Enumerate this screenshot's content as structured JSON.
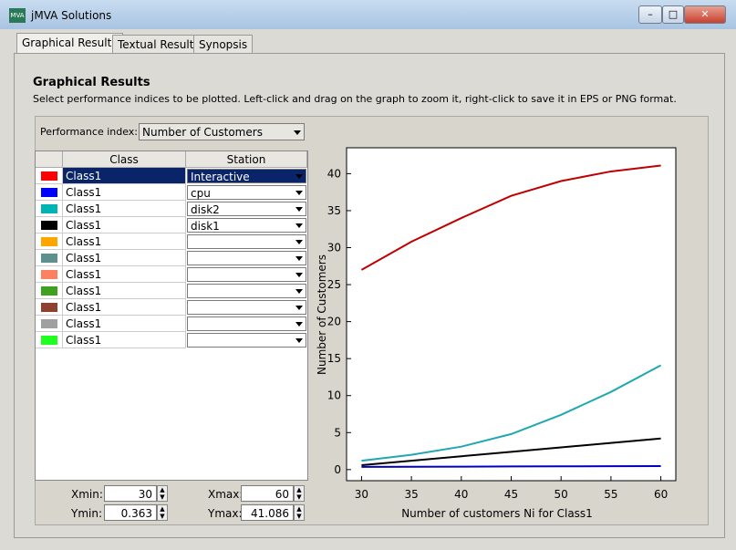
{
  "window": {
    "title": "jMVA Solutions"
  },
  "tabs": [
    "Graphical Results",
    "Textual Results",
    "Synopsis"
  ],
  "panel": {
    "title": "Graphical Results",
    "description": "Select performance indices to be plotted. Left-click and drag on the graph to zoom it, right-click to save it in EPS or PNG format."
  },
  "performance_index": {
    "label": "Performance index:",
    "value": "Number of Customers"
  },
  "table": {
    "headers": [
      "Class",
      "Station"
    ],
    "rows": [
      {
        "color": "#ff0000",
        "class": "Class1",
        "station": "Interactive"
      },
      {
        "color": "#0000ff",
        "class": "Class1",
        "station": "cpu"
      },
      {
        "color": "#00b4b4",
        "class": "Class1",
        "station": "disk2"
      },
      {
        "color": "#000000",
        "class": "Class1",
        "station": "disk1"
      },
      {
        "color": "#ffa500",
        "class": "Class1"
      },
      {
        "color": "#5f8f8f",
        "class": "Class1"
      },
      {
        "color": "#ff8060",
        "class": "Class1"
      },
      {
        "color": "#40a020",
        "class": "Class1"
      },
      {
        "color": "#904030",
        "class": "Class1"
      },
      {
        "color": "#a0a0a0",
        "class": "Class1"
      },
      {
        "color": "#20ff20",
        "class": "Class1"
      }
    ]
  },
  "range": {
    "xmin": {
      "label": "Xmin:",
      "value": 30
    },
    "xmax": {
      "label": "Xmax:",
      "value": 60
    },
    "ymin": {
      "label": "Ymin:",
      "value": 0.363
    },
    "ymax": {
      "label": "Ymax:",
      "value": 41.086
    }
  },
  "chart_data": {
    "type": "line",
    "x_label": "Number of customers Ni for Class1",
    "y_label": "Number of Customers",
    "x": [
      30,
      35,
      40,
      45,
      50,
      55,
      60
    ],
    "series": [
      {
        "color": "#c00000",
        "values": [
          27.0,
          30.8,
          34.0,
          37.0,
          39.0,
          40.3,
          41.1
        ]
      },
      {
        "color": "#0000c0",
        "values": [
          0.36,
          0.38,
          0.4,
          0.42,
          0.44,
          0.46,
          0.48
        ]
      },
      {
        "color": "#20a8b0",
        "values": [
          1.2,
          2.0,
          3.1,
          4.8,
          7.4,
          10.5,
          14.1
        ]
      },
      {
        "color": "#000000",
        "values": [
          0.6,
          1.2,
          1.8,
          2.4,
          3.0,
          3.6,
          4.2
        ]
      }
    ],
    "xlim": [
      28.5,
      61.5
    ],
    "ylim": [
      -1.5,
      43.5
    ],
    "xticks": [
      30,
      35,
      40,
      45,
      50,
      55,
      60
    ],
    "yticks": [
      0,
      5,
      10,
      15,
      20,
      25,
      30,
      35,
      40
    ]
  }
}
